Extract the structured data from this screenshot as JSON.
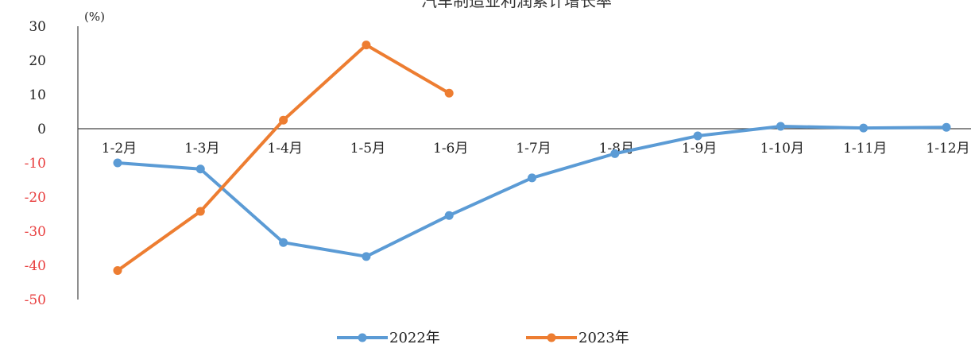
{
  "chart_data": {
    "type": "line",
    "title": "汽车制造业利润累计增长率",
    "unit_label": "(%)",
    "categories": [
      "1-2月",
      "1-3月",
      "1-4月",
      "1-5月",
      "1-6月",
      "1-7月",
      "1-8月",
      "1-9月",
      "1-10月",
      "1-11月",
      "1-12月"
    ],
    "ylim": [
      -50,
      30
    ],
    "yticks": [
      30,
      20,
      10,
      0,
      -10,
      -20,
      -30,
      -40,
      -50
    ],
    "ytick_labels": [
      "30",
      "20",
      "10",
      "0",
      "-10",
      "-20",
      "-30",
      "-40",
      "-50"
    ],
    "series": [
      {
        "name": "2022年",
        "color": "#5B9BD5",
        "values": [
          -10,
          -11.8,
          -33.3,
          -37.4,
          -25.4,
          -14.4,
          -7.3,
          -2.1,
          0.7,
          0.2,
          0.4
        ]
      },
      {
        "name": "2023年",
        "color": "#ED7D31",
        "values": [
          -41.5,
          -24.2,
          2.5,
          24.5,
          10.4,
          null,
          null,
          null,
          null,
          null,
          null
        ]
      }
    ],
    "axis_colors": {
      "positive": "#222222",
      "negative": "#E83E3E"
    },
    "legend_position": "bottom"
  }
}
